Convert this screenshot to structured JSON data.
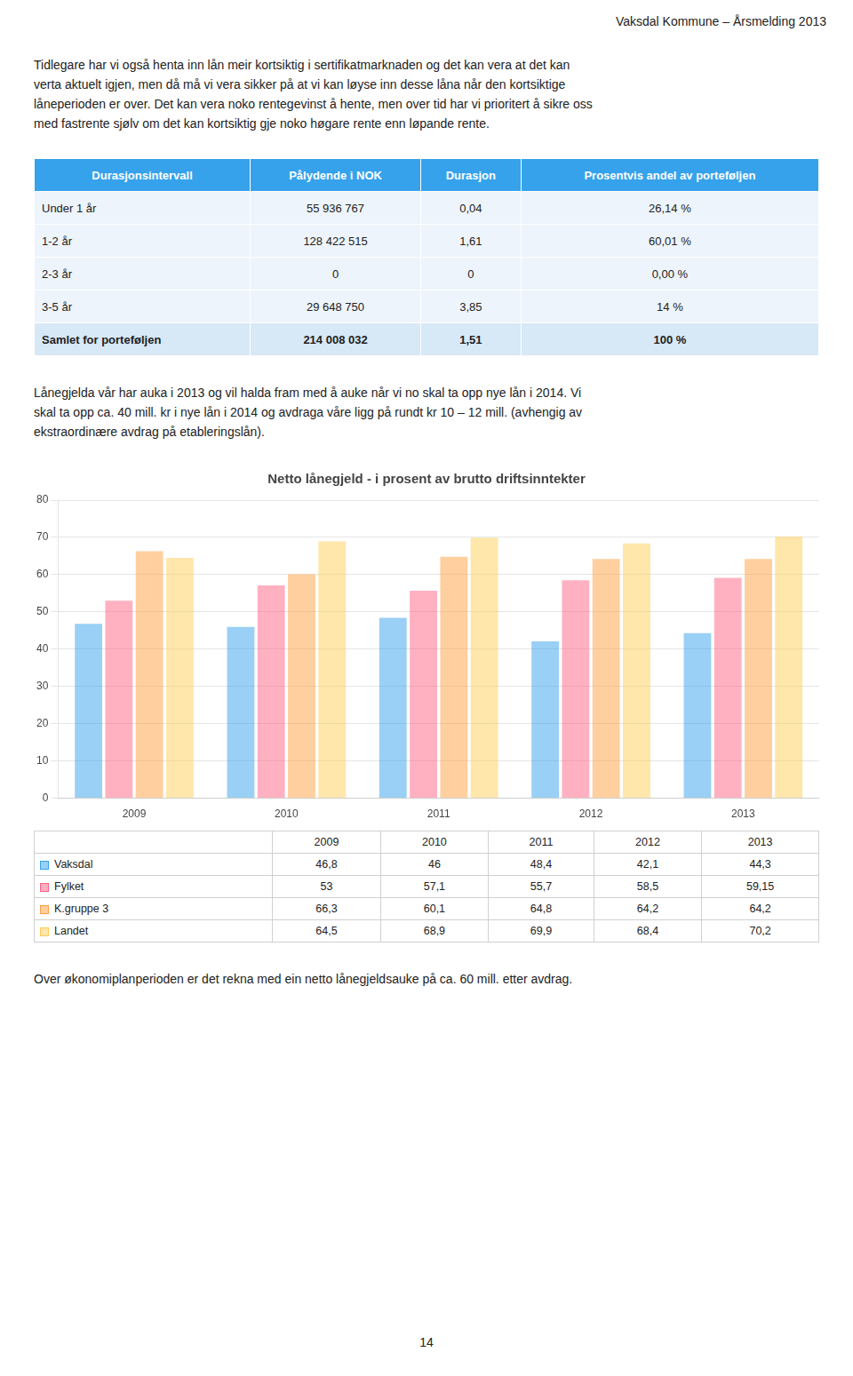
{
  "page_title": "Vaksdal Kommune – Årsmelding 2013",
  "text_before_table": [
    "Tidlegare har vi også henta inn lån meir kortsiktig i sertifikatmarknaden og det kan vera at det kan",
    "verta aktuelt igjen, men då må vi vera sikker på at vi kan løyse inn desse låna når den kortsiktige",
    "låneperioden er over. Det kan vera noko rentegevinst å hente, men over tid har vi prioritert å sikre oss",
    "med fastrente sjølv om det kan kortsiktig gje noko høgare rente enn løpande rente."
  ],
  "table": {
    "headers": [
      "Durasjonsintervall",
      "Pålydende i NOK",
      "Durasjon",
      "Prosentvis andel av porteføljen"
    ],
    "rows": [
      [
        "Under 1 år",
        "55 936 767",
        "0,04",
        "26,14 %"
      ],
      [
        "1-2 år",
        "128 422 515",
        "1,61",
        "60,01 %"
      ],
      [
        "2-3 år",
        "0",
        "0",
        "0,00 %"
      ],
      [
        "3-5 år",
        "29 648 750",
        "3,85",
        "14 %"
      ],
      [
        "Samlet for porteføljen",
        "214 008 032",
        "1,51",
        "100 %"
      ]
    ]
  },
  "text_after_table": [
    "Lånegjelda vår har auka i 2013 og vil halda fram med å auke når vi no skal ta opp nye lån i 2014. Vi",
    "skal ta opp ca. 40 mill. kr i nye lån i 2014 og avdraga våre ligg på rundt kr 10 – 12 mill.  (avhengig av",
    "ekstraordinære avdrag på etableringslån)."
  ],
  "chart_data": {
    "type": "bar",
    "title": "Netto lånegjeld - i prosent av brutto driftsinntekter",
    "categories": [
      "2009",
      "2010",
      "2011",
      "2012",
      "2013"
    ],
    "series": [
      {
        "name": "Vaksdal",
        "values": [
          46.8,
          46.0,
          48.4,
          42.1,
          44.3
        ],
        "value_labels": [
          "46,8",
          "46",
          "48,4",
          "42,1",
          "44,3"
        ]
      },
      {
        "name": "Fylket",
        "values": [
          53.0,
          57.1,
          55.7,
          58.5,
          59.15
        ],
        "value_labels": [
          "53",
          "57,1",
          "55,7",
          "58,5",
          "59,15"
        ]
      },
      {
        "name": "K.gruppe 3",
        "values": [
          66.3,
          60.1,
          64.8,
          64.2,
          64.2
        ],
        "value_labels": [
          "66,3",
          "60,1",
          "64,8",
          "64,2",
          "64,2"
        ]
      },
      {
        "name": "Landet",
        "values": [
          64.5,
          68.9,
          69.9,
          68.4,
          70.2
        ],
        "value_labels": [
          "64,5",
          "68,9",
          "69,9",
          "68,4",
          "70,2"
        ]
      }
    ],
    "ylim": [
      0,
      80
    ],
    "yticks": [
      0,
      10,
      20,
      30,
      40,
      50,
      60,
      70,
      80
    ],
    "grid": true
  },
  "text_after_chart": "Over økonomiplanperioden er det rekna med ein netto lånegjeldsauke på ca. 60 mill. etter avdrag.",
  "page_number": "14"
}
